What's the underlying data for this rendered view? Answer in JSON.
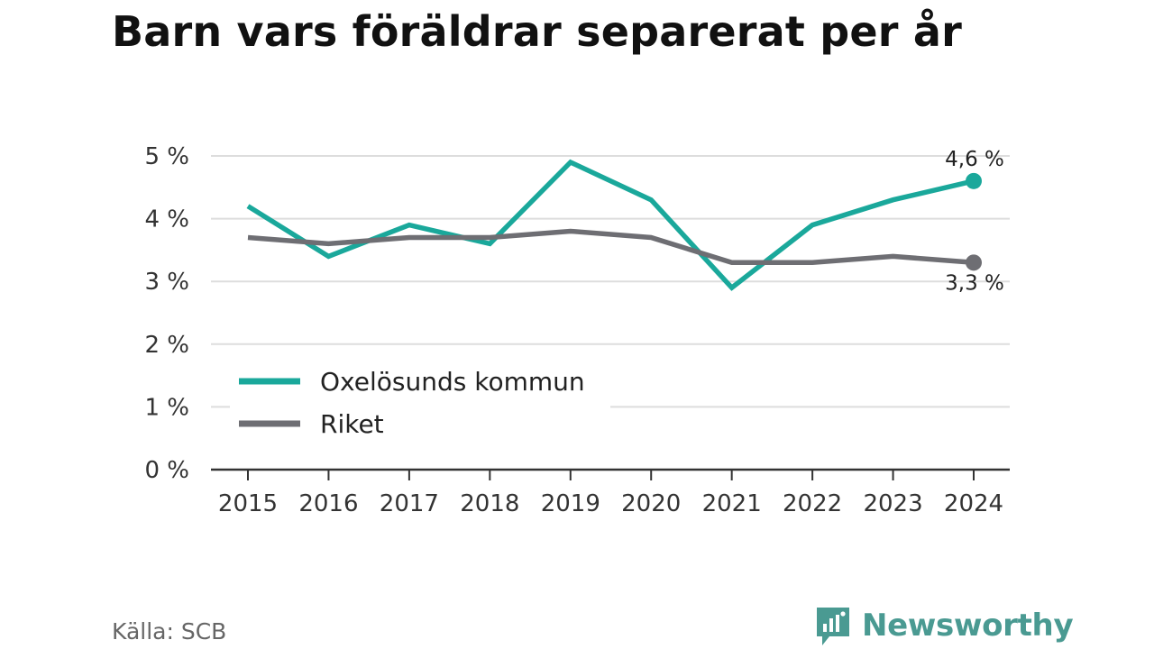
{
  "header": {
    "title": "Barn vars föräldrar separerat per år"
  },
  "footer": {
    "source": "Källa: SCB",
    "brand": "Newsworthy"
  },
  "chart_data": {
    "type": "line",
    "title": "Barn vars föräldrar separerat per år",
    "xlabel": "",
    "ylabel": "",
    "x": [
      "2015",
      "2016",
      "2017",
      "2018",
      "2019",
      "2020",
      "2021",
      "2022",
      "2023",
      "2024"
    ],
    "ylim": [
      0,
      5
    ],
    "yticks": [
      0,
      1,
      2,
      3,
      4,
      5
    ],
    "ytick_labels": [
      "0 %",
      "1 %",
      "2 %",
      "3 %",
      "4 %",
      "5 %"
    ],
    "grid": true,
    "legend": "bottom-left",
    "series": [
      {
        "name": "Oxelösunds kommun",
        "color": "#1aa89b",
        "values": [
          4.2,
          3.4,
          3.9,
          3.6,
          4.9,
          4.3,
          2.9,
          3.9,
          4.3,
          4.6
        ],
        "end_label": "4,6 %"
      },
      {
        "name": "Riket",
        "color": "#6e6e73",
        "values": [
          3.7,
          3.6,
          3.7,
          3.7,
          3.8,
          3.7,
          3.3,
          3.3,
          3.4,
          3.3
        ],
        "end_label": "3,3 %"
      }
    ]
  }
}
